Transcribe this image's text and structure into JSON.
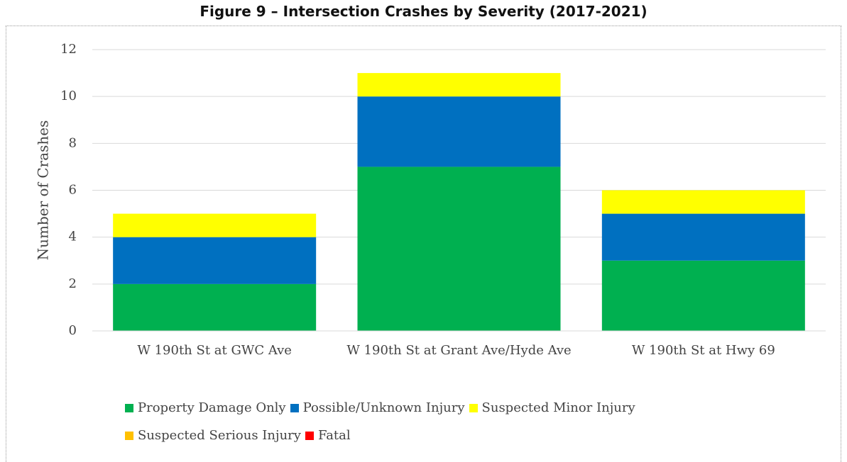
{
  "chart_data": {
    "type": "stacked_bar",
    "title": "Figure 9 – Intersection Crashes by Severity (2017-2021)",
    "y_label": "Number of Crashes",
    "categories": [
      "W 190th St at GWC Ave",
      "W 190th St at Grant Ave/Hyde Ave",
      "W 190th St at Hwy 69"
    ],
    "series": [
      {
        "name": "Property Damage Only",
        "color": "#00b050",
        "values": [
          2,
          7,
          3
        ]
      },
      {
        "name": "Possible/Unknown Injury",
        "color": "#0070c0",
        "values": [
          2,
          3,
          2
        ]
      },
      {
        "name": "Suspected Minor Injury",
        "color": "#ffff00",
        "values": [
          1,
          1,
          1
        ]
      },
      {
        "name": "Suspected Serious Injury",
        "color": "#ffc000",
        "values": [
          0,
          0,
          0
        ]
      },
      {
        "name": "Fatal",
        "color": "#ff0000",
        "values": [
          0,
          0,
          0
        ]
      }
    ],
    "ylim": [
      0,
      12
    ],
    "yticks": [
      0,
      2,
      4,
      6,
      8,
      10,
      12
    ],
    "grid": true,
    "legend": "bottom"
  }
}
